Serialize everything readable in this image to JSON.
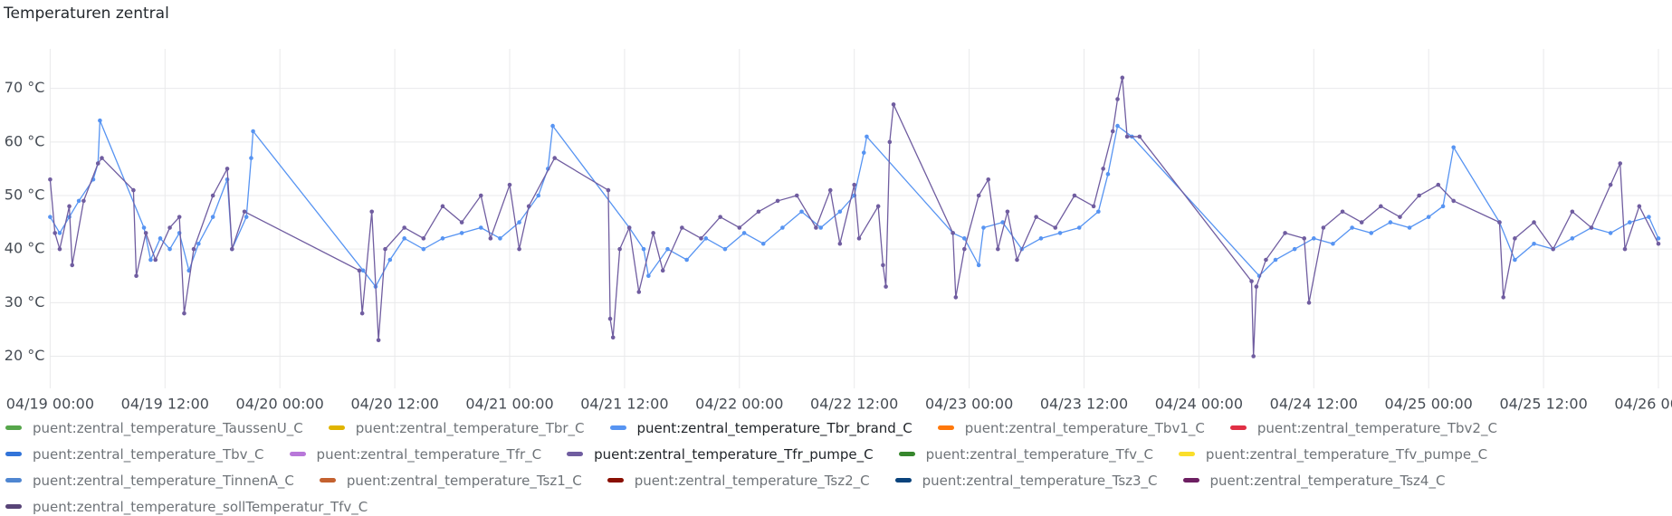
{
  "chart_data": {
    "type": "line",
    "title": "Temperaturen zentral",
    "xlim": [
      "04/19 00:00",
      "04/26 00:00"
    ],
    "xticks": [
      "04/19 00:00",
      "04/19 12:00",
      "04/20 00:00",
      "04/20 12:00",
      "04/21 00:00",
      "04/21 12:00",
      "04/22 00:00",
      "04/22 12:00",
      "04/23 00:00",
      "04/23 12:00",
      "04/24 00:00",
      "04/24 12:00",
      "04/25 00:00",
      "04/25 12:00",
      "04/26 00:00"
    ],
    "ylim": [
      14,
      74
    ],
    "yticks": [
      {
        "value": 20,
        "label": "20 °C"
      },
      {
        "value": 30,
        "label": "30 °C"
      },
      {
        "value": 40,
        "label": "40 °C"
      },
      {
        "value": 50,
        "label": "50 °C"
      },
      {
        "value": 60,
        "label": "60 °C"
      },
      {
        "value": 70,
        "label": "70 °C"
      }
    ],
    "grid": true,
    "series": [
      {
        "name": "puent:zentral_temperature_TaussenU_C",
        "color": "#56a64b"
      },
      {
        "name": "puent:zentral_temperature_Tbr_C",
        "color": "#e0b400"
      },
      {
        "name": "puent:zentral_temperature_Tbr_brand_C",
        "color": "#5794f2",
        "x": [
          "04/19 00:00",
          "04/19 01:00",
          "04/19 02:00",
          "04/19 03:00",
          "04/19 04:30",
          "04/19 05:00",
          "04/19 05:12",
          "04/19 09:48",
          "04/19 10:30",
          "04/19 11:30",
          "04/19 12:30",
          "04/19 13:30",
          "04/19 14:30",
          "04/19 15:30",
          "04/19 17:00",
          "04/19 18:30",
          "04/19 19:00",
          "04/19 20:30",
          "04/19 21:00",
          "04/19 21:12",
          "04/20 08:42",
          "04/20 10:00",
          "04/20 11:30",
          "04/20 13:00",
          "04/20 15:00",
          "04/20 17:00",
          "04/20 19:00",
          "04/20 21:00",
          "04/20 23:00",
          "04/21 01:00",
          "04/21 03:00",
          "04/21 04:00",
          "04/21 04:30",
          "04/21 12:30",
          "04/21 14:00",
          "04/21 14:30",
          "04/21 16:30",
          "04/21 18:30",
          "04/21 20:30",
          "04/21 22:30",
          "04/22 00:30",
          "04/22 02:30",
          "04/22 04:30",
          "04/22 06:30",
          "04/22 08:30",
          "04/22 10:30",
          "04/22 12:00",
          "04/22 13:00",
          "04/22 13:18",
          "04/22 22:18",
          "04/22 23:30",
          "04/23 01:00",
          "04/23 01:30",
          "04/23 03:30",
          "04/23 05:30",
          "04/23 07:30",
          "04/23 09:30",
          "04/23 11:30",
          "04/23 13:30",
          "04/23 14:30",
          "04/23 15:30",
          "04/23 17:00",
          "04/24 06:18",
          "04/24 08:00",
          "04/24 10:00",
          "04/24 12:00",
          "04/24 14:00",
          "04/24 16:00",
          "04/24 18:00",
          "04/24 20:00",
          "04/24 22:00",
          "04/25 00:00",
          "04/25 01:30",
          "04/25 02:36",
          "04/25 07:24",
          "04/25 09:00",
          "04/25 11:00",
          "04/25 13:00",
          "04/25 15:00",
          "04/25 17:00",
          "04/25 19:00",
          "04/25 21:00",
          "04/25 23:00",
          "04/26 00:00"
        ],
        "values": [
          46,
          43,
          46,
          49,
          53,
          56,
          64,
          44,
          38,
          42,
          40,
          43,
          36,
          41,
          46,
          53,
          40,
          46,
          57,
          62,
          36,
          33,
          38,
          42,
          40,
          42,
          43,
          44,
          42,
          45,
          50,
          55,
          63,
          44,
          40,
          35,
          40,
          38,
          42,
          40,
          43,
          41,
          44,
          47,
          44,
          47,
          50,
          58,
          61,
          43,
          42,
          37,
          44,
          45,
          40,
          42,
          43,
          44,
          47,
          54,
          63,
          61,
          35,
          38,
          40,
          42,
          41,
          44,
          43,
          45,
          44,
          46,
          48,
          59,
          45,
          38,
          41,
          40,
          42,
          44,
          43,
          45,
          46,
          42
        ]
      },
      {
        "name": "puent:zentral_temperature_Tbv1_C",
        "color": "#ff780a"
      },
      {
        "name": "puent:zentral_temperature_Tbv2_C",
        "color": "#e02f44"
      },
      {
        "name": "puent:zentral_temperature_Tbv_C",
        "color": "#3274d9"
      },
      {
        "name": "puent:zentral_temperature_Tfr_C",
        "color": "#b877d9"
      },
      {
        "name": "puent:zentral_temperature_Tfr_pumpe_C",
        "color": "#705da0",
        "x": [
          "04/19 00:00",
          "04/19 00:30",
          "04/19 01:00",
          "04/19 02:00",
          "04/19 02:18",
          "04/19 03:30",
          "04/19 05:00",
          "04/19 05:24",
          "04/19 08:42",
          "04/19 09:00",
          "04/19 10:00",
          "04/19 11:00",
          "04/19 12:30",
          "04/19 13:30",
          "04/19 14:00",
          "04/19 15:00",
          "04/19 17:00",
          "04/19 18:30",
          "04/19 19:00",
          "04/19 20:18",
          "04/20 08:18",
          "04/20 08:36",
          "04/20 09:36",
          "04/20 10:18",
          "04/20 11:00",
          "04/20 13:00",
          "04/20 15:00",
          "04/20 17:00",
          "04/20 19:00",
          "04/20 21:00",
          "04/20 22:00",
          "04/21 00:00",
          "04/21 01:00",
          "04/21 02:00",
          "04/21 04:42",
          "04/21 10:18",
          "04/21 10:30",
          "04/21 10:48",
          "04/21 11:30",
          "04/21 12:30",
          "04/21 13:30",
          "04/21 15:00",
          "04/21 16:00",
          "04/21 18:00",
          "04/21 20:00",
          "04/21 22:00",
          "04/22 00:00",
          "04/22 02:00",
          "04/22 04:00",
          "04/22 06:00",
          "04/22 08:00",
          "04/22 09:30",
          "04/22 10:30",
          "04/22 12:00",
          "04/22 12:30",
          "04/22 14:30",
          "04/22 15:00",
          "04/22 15:18",
          "04/22 15:42",
          "04/22 16:06",
          "04/22 22:18",
          "04/22 22:36",
          "04/22 23:30",
          "04/23 01:00",
          "04/23 02:00",
          "04/23 03:00",
          "04/23 04:00",
          "04/23 05:00",
          "04/23 07:00",
          "04/23 09:00",
          "04/23 11:00",
          "04/23 13:00",
          "04/23 14:00",
          "04/23 15:00",
          "04/23 15:30",
          "04/23 16:00",
          "04/23 16:30",
          "04/23 17:48",
          "04/24 05:30",
          "04/24 05:42",
          "04/24 06:00",
          "04/24 07:00",
          "04/24 09:00",
          "04/24 11:00",
          "04/24 11:30",
          "04/24 13:00",
          "04/24 15:00",
          "04/24 17:00",
          "04/24 19:00",
          "04/24 21:00",
          "04/24 23:00",
          "04/25 01:00",
          "04/25 02:36",
          "04/25 07:24",
          "04/25 07:48",
          "04/25 09:00",
          "04/25 11:00",
          "04/25 13:00",
          "04/25 15:00",
          "04/25 17:00",
          "04/25 19:00",
          "04/25 20:00",
          "04/25 20:30",
          "04/25 22:00",
          "04/26 00:00"
        ],
        "values": [
          53,
          43,
          40,
          48,
          37,
          49,
          56,
          57,
          51,
          35,
          43,
          38,
          44,
          46,
          28,
          40,
          50,
          55,
          40,
          47,
          36,
          28,
          47,
          23,
          40,
          44,
          42,
          48,
          45,
          50,
          42,
          52,
          40,
          48,
          57,
          51,
          27,
          23.5,
          40,
          44,
          32,
          43,
          36,
          44,
          42,
          46,
          44,
          47,
          49,
          50,
          44,
          51,
          41,
          52,
          42,
          48,
          37,
          33,
          60,
          67,
          43,
          31,
          40,
          50,
          53,
          40,
          47,
          38,
          46,
          44,
          50,
          48,
          55,
          62,
          68,
          72,
          61,
          61,
          34,
          20,
          33,
          38,
          43,
          42,
          30,
          44,
          47,
          45,
          48,
          46,
          50,
          52,
          49,
          45,
          31,
          42,
          45,
          40,
          47,
          44,
          52,
          56,
          40,
          48,
          41
        ]
      },
      {
        "name": "puent:zentral_temperature_Tfv_C",
        "color": "#37872d"
      },
      {
        "name": "puent:zentral_temperature_Tfv_pumpe_C",
        "color": "#fade2a"
      },
      {
        "name": "puent:zentral_temperature_TinnenA_C",
        "color": "#4f86d1"
      },
      {
        "name": "puent:zentral_temperature_Tsz1_C",
        "color": "#c4612f"
      },
      {
        "name": "puent:zentral_temperature_Tsz2_C",
        "color": "#890f02"
      },
      {
        "name": "puent:zentral_temperature_Tsz3_C",
        "color": "#0a437c"
      },
      {
        "name": "puent:zentral_temperature_Tsz4_C",
        "color": "#6d1f62"
      },
      {
        "name": "puent:zentral_temperature_sollTemperatur_Tfv_C",
        "color": "#584477"
      }
    ]
  }
}
